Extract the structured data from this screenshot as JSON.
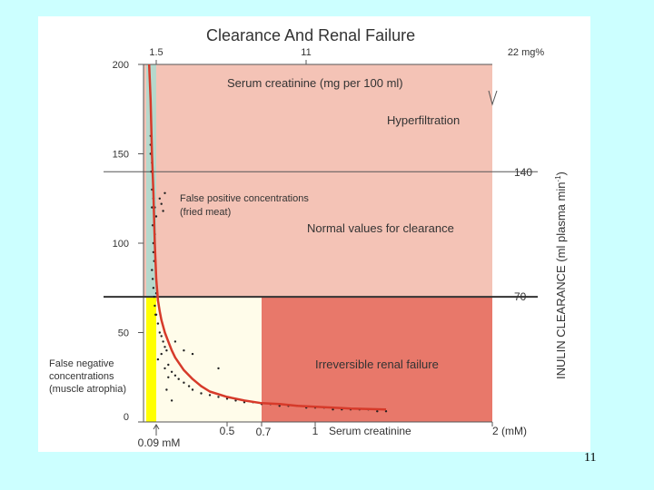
{
  "slide": {
    "number": "11"
  },
  "chart_data": {
    "type": "line",
    "title": "Clearance And Renal Failure",
    "ylabel": "INULIN CLEARANCE (ml plasma min",
    "ylabel_superscript": "-1",
    "ylabel_close": ")",
    "xlabel": "Serum creatinine",
    "x_unit": "(mM)",
    "top_axis_label": "Serum creatinine (mg per 100 ml)",
    "top_ticks": [
      "1.5",
      "11",
      "22 mg%"
    ],
    "y_ticks": [
      "0",
      "50",
      "100",
      "150",
      "200"
    ],
    "x_ticks": [
      "0.09 mM",
      "0.5",
      "0.7",
      "1",
      "2"
    ],
    "ylim": [
      0,
      200
    ],
    "xlim": [
      0,
      2
    ],
    "thresholds": [
      {
        "value": 140,
        "label": "140"
      },
      {
        "value": 70,
        "label": "70"
      }
    ],
    "regions": {
      "hyperfiltration": "Hyperfiltration",
      "normal": "Normal values for clearance",
      "irreversible": "Irreversible renal failure",
      "false_positive_1": "False positive concentrations",
      "false_positive_2": "(fried meat)",
      "false_negative_1": "False negative",
      "false_negative_2": "concentrations",
      "false_negative_3": "(muscle atrophia)"
    },
    "colors": {
      "pink": "#f4c3b6",
      "red_zone": "#e8786a",
      "yellow": "#ffff00",
      "teal": "#b6d8cc",
      "cream": "#fffcea",
      "curve": "#d63a2a"
    },
    "curve": {
      "x": [
        0.04,
        0.05,
        0.06,
        0.07,
        0.08,
        0.09,
        0.1,
        0.11,
        0.12,
        0.14,
        0.16,
        0.18,
        0.2,
        0.25,
        0.3,
        0.35,
        0.4,
        0.5,
        0.6,
        0.7,
        0.8,
        0.9,
        1.0,
        1.2,
        1.4
      ],
      "y": [
        200,
        180,
        150,
        128,
        100,
        80,
        68,
        62,
        57,
        50,
        45,
        40,
        36,
        29,
        24,
        20,
        17,
        14,
        12,
        10.5,
        10,
        9,
        8.5,
        7.5,
        7
      ]
    },
    "scatter": {
      "x": [
        0.05,
        0.05,
        0.055,
        0.06,
        0.06,
        0.065,
        0.07,
        0.07,
        0.075,
        0.06,
        0.065,
        0.07,
        0.075,
        0.08,
        0.085,
        0.05,
        0.06,
        0.07,
        0.08,
        0.09,
        0.1,
        0.09,
        0.1,
        0.11,
        0.12,
        0.13,
        0.14,
        0.15,
        0.1,
        0.12,
        0.14,
        0.16,
        0.18,
        0.2,
        0.22,
        0.25,
        0.28,
        0.3,
        0.35,
        0.4,
        0.45,
        0.5,
        0.55,
        0.6,
        0.65,
        0.7,
        0.75,
        0.8,
        0.85,
        0.9,
        0.95,
        1.0,
        1.05,
        1.1,
        1.15,
        1.2,
        1.25,
        1.3,
        1.35,
        1.4,
        0.07,
        0.08,
        0.09,
        0.11,
        0.12,
        0.13,
        0.14,
        0.2,
        0.25,
        0.3,
        0.16,
        0.15,
        0.18,
        0.35,
        0.45
      ],
      "y": [
        160,
        150,
        140,
        130,
        120,
        110,
        100,
        95,
        90,
        85,
        80,
        75,
        70,
        65,
        60,
        155,
        145,
        125,
        105,
        72,
        68,
        60,
        55,
        50,
        48,
        45,
        42,
        40,
        35,
        38,
        30,
        32,
        28,
        26,
        24,
        22,
        20,
        18,
        16,
        15,
        14,
        13,
        12,
        11,
        11,
        10,
        10,
        9,
        9,
        9,
        8,
        8,
        8,
        7,
        7,
        7,
        7,
        7,
        6,
        6,
        125,
        120,
        115,
        125,
        122,
        118,
        128,
        45,
        40,
        38,
        25,
        18,
        12,
        20,
        30
      ]
    }
  }
}
